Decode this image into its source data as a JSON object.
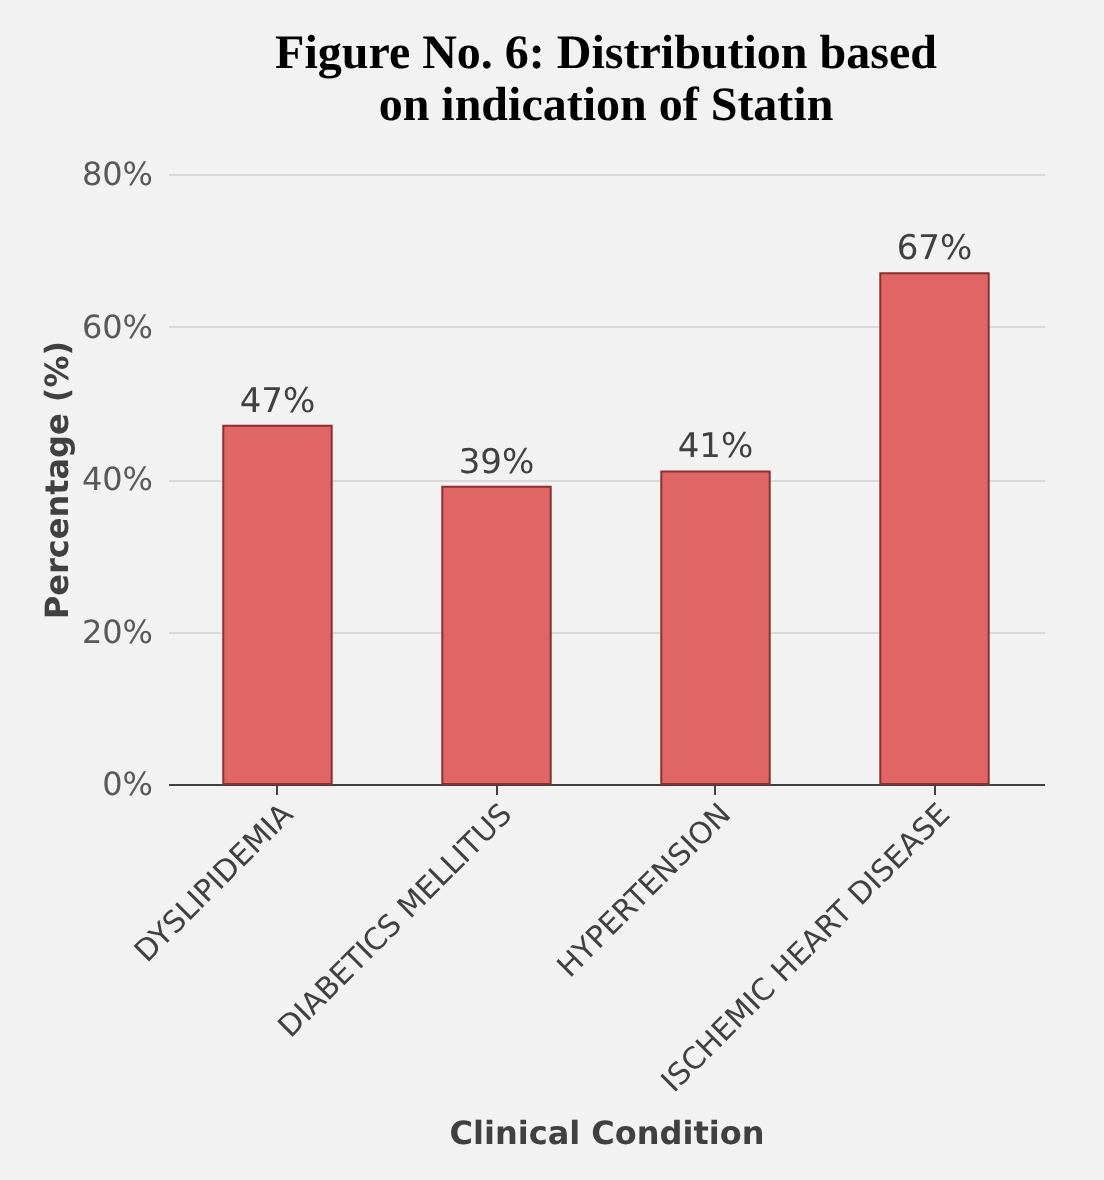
{
  "chart_data": {
    "type": "bar",
    "title": "Figure No. 6: Distribution based on indication of Statin",
    "xlabel": "Clinical Condition",
    "ylabel": "Percentage (%)",
    "categories": [
      "DYSLIPIDEMIA",
      "DIABETICS MELLITUS",
      "HYPERTENSION",
      "ISCHEMIC HEART DISEASE"
    ],
    "values": [
      47,
      39,
      41,
      67
    ],
    "value_labels": [
      "47%",
      "39%",
      "41%",
      "67%"
    ],
    "color": "#e06666",
    "ylim": [
      0,
      80
    ],
    "yticks": [
      {
        "value": 0,
        "label": "0%"
      },
      {
        "value": 20,
        "label": "20%"
      },
      {
        "value": 40,
        "label": "40%"
      },
      {
        "value": 60,
        "label": "60%"
      },
      {
        "value": 80,
        "label": "80%"
      }
    ],
    "grid": "y"
  }
}
